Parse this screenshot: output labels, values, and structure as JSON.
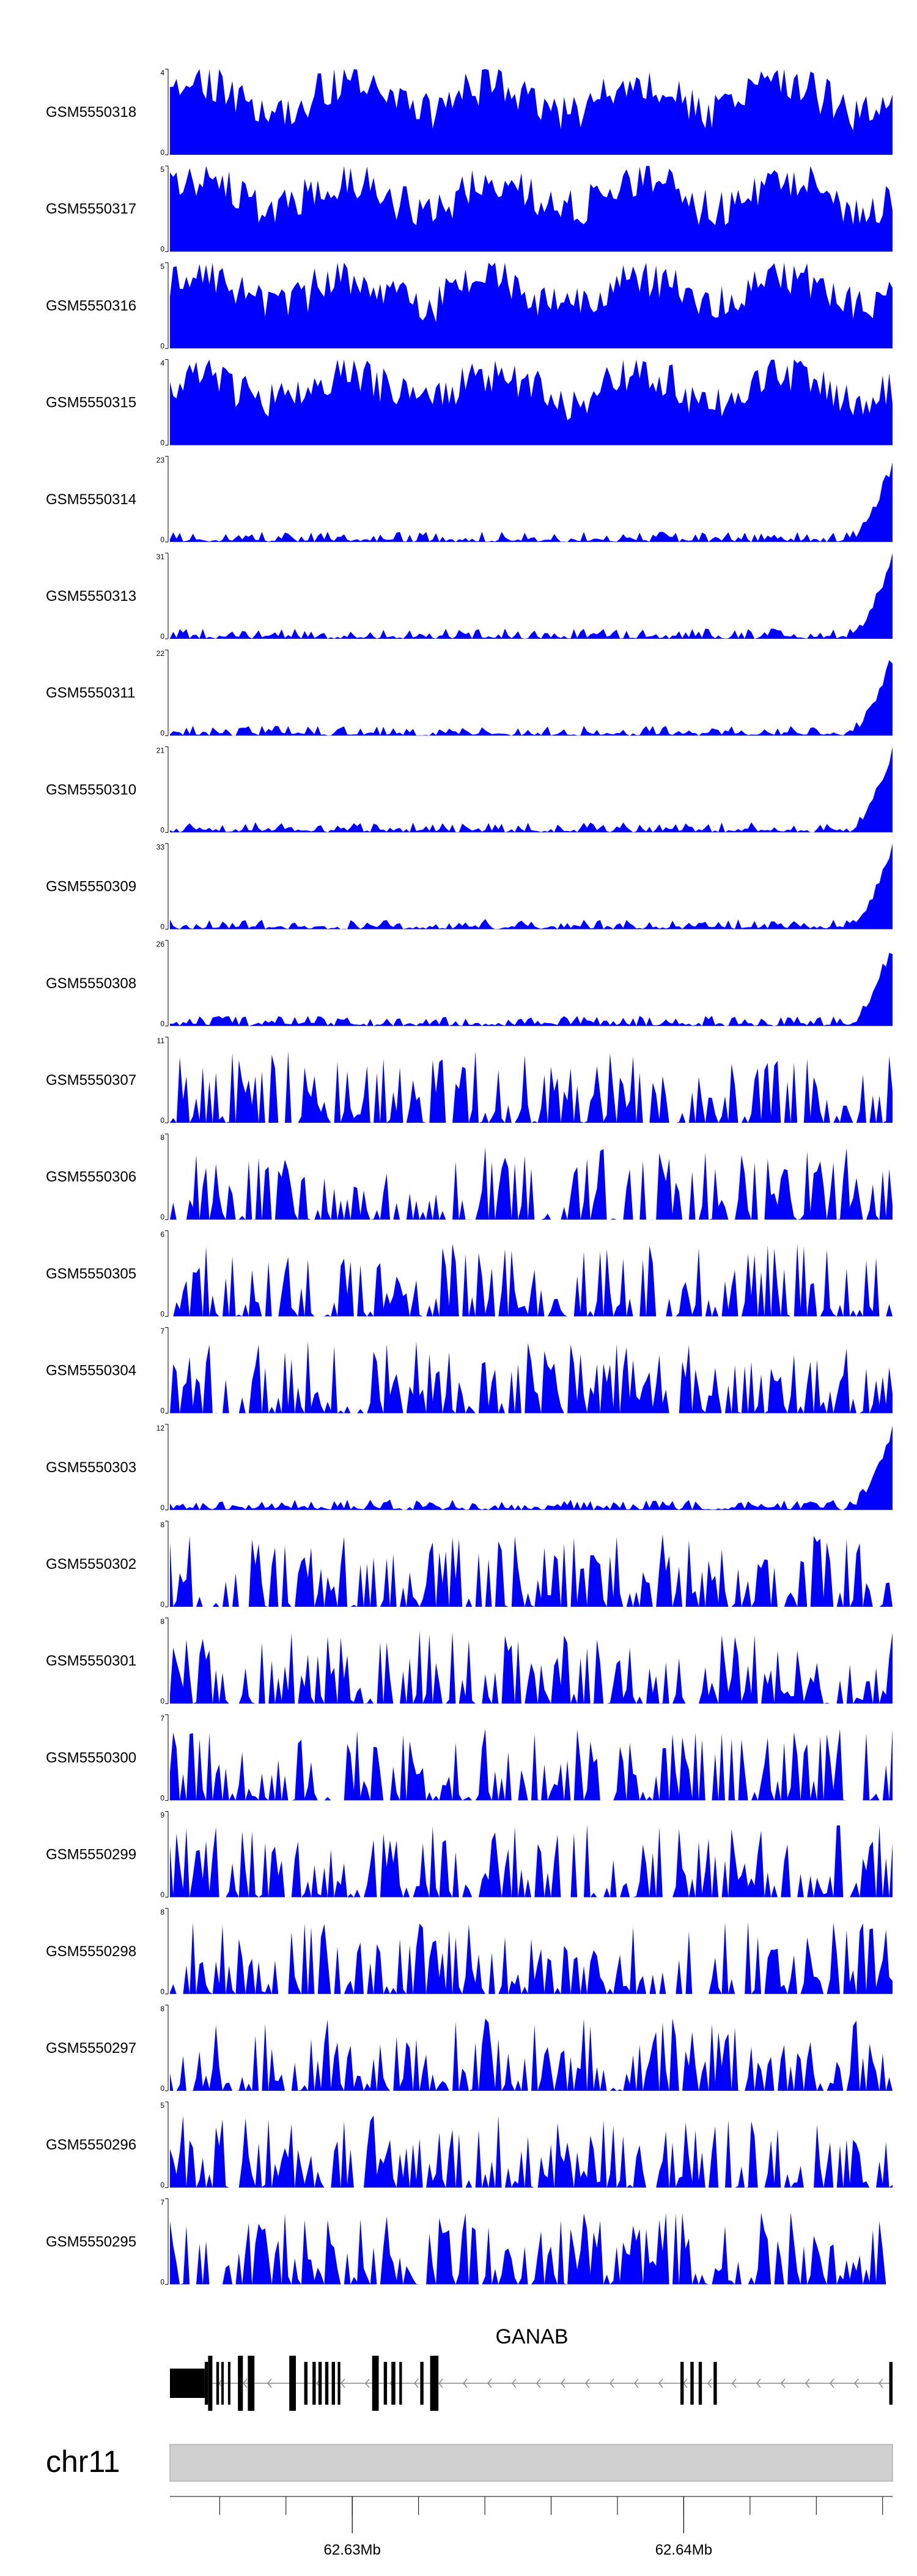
{
  "chart_data": {
    "type": "area",
    "x_range": [
      62624500,
      62646300
    ],
    "tracks": [
      {
        "name": "GSM5550318",
        "ylim": [
          0,
          4
        ],
        "profile": "uniform"
      },
      {
        "name": "GSM5550317",
        "ylim": [
          0,
          5
        ],
        "profile": "uniform"
      },
      {
        "name": "GSM5550316",
        "ylim": [
          0,
          5
        ],
        "profile": "uniform"
      },
      {
        "name": "GSM5550315",
        "ylim": [
          0,
          4
        ],
        "profile": "uniform"
      },
      {
        "name": "GSM5550314",
        "ylim": [
          0,
          23
        ],
        "profile": "rightpeak"
      },
      {
        "name": "GSM5550313",
        "ylim": [
          0,
          31
        ],
        "profile": "rightpeak"
      },
      {
        "name": "GSM5550311",
        "ylim": [
          0,
          22
        ],
        "profile": "rightpeak"
      },
      {
        "name": "GSM5550310",
        "ylim": [
          0,
          21
        ],
        "profile": "rightpeak"
      },
      {
        "name": "GSM5550309",
        "ylim": [
          0,
          33
        ],
        "profile": "rightpeak"
      },
      {
        "name": "GSM5550308",
        "ylim": [
          0,
          26
        ],
        "profile": "rightpeak"
      },
      {
        "name": "GSM5550307",
        "ylim": [
          0,
          11
        ],
        "profile": "sparse"
      },
      {
        "name": "GSM5550306",
        "ylim": [
          0,
          8
        ],
        "profile": "sparse"
      },
      {
        "name": "GSM5550305",
        "ylim": [
          0,
          6
        ],
        "profile": "sparse"
      },
      {
        "name": "GSM5550304",
        "ylim": [
          0,
          7
        ],
        "profile": "sparse"
      },
      {
        "name": "GSM5550303",
        "ylim": [
          0,
          12
        ],
        "profile": "rightpeak"
      },
      {
        "name": "GSM5550302",
        "ylim": [
          0,
          8
        ],
        "profile": "sparse"
      },
      {
        "name": "GSM5550301",
        "ylim": [
          0,
          8
        ],
        "profile": "sparse"
      },
      {
        "name": "GSM5550300",
        "ylim": [
          0,
          7
        ],
        "profile": "sparse"
      },
      {
        "name": "GSM5550299",
        "ylim": [
          0,
          9
        ],
        "profile": "sparse"
      },
      {
        "name": "GSM5550298",
        "ylim": [
          0,
          8
        ],
        "profile": "sparse"
      },
      {
        "name": "GSM5550297",
        "ylim": [
          0,
          8
        ],
        "profile": "sparse"
      },
      {
        "name": "GSM5550296",
        "ylim": [
          0,
          5
        ],
        "profile": "sparse"
      },
      {
        "name": "GSM5550295",
        "ylim": [
          0,
          7
        ],
        "profile": "sparse"
      }
    ],
    "gene": {
      "name": "GANAB",
      "strand": "-",
      "start": 62624500,
      "end": 62646300,
      "exons": [
        [
          62624500,
          62625550
        ],
        [
          62625550,
          62625650
        ],
        [
          62625650,
          62625780
        ],
        [
          62625900,
          62625980
        ],
        [
          62626050,
          62626120
        ],
        [
          62626250,
          62626320
        ],
        [
          62626550,
          62626700
        ],
        [
          62626850,
          62627050
        ],
        [
          62628100,
          62628300
        ],
        [
          62628550,
          62628650
        ],
        [
          62628800,
          62628900
        ],
        [
          62628980,
          62629080
        ],
        [
          62629180,
          62629280
        ],
        [
          62629380,
          62629480
        ],
        [
          62629560,
          62629640
        ],
        [
          62630600,
          62630800
        ],
        [
          62630950,
          62631050
        ],
        [
          62631180,
          62631300
        ],
        [
          62631420,
          62631500
        ],
        [
          62632050,
          62632150
        ],
        [
          62632350,
          62632600
        ],
        [
          62639900,
          62640000
        ],
        [
          62640200,
          62640300
        ],
        [
          62640450,
          62640550
        ],
        [
          62640900,
          62641000
        ],
        [
          62646200,
          62646300
        ]
      ]
    },
    "chromosome": "chr11",
    "xticks": [
      {
        "pos": 62630000,
        "label": "62.63Mb"
      },
      {
        "pos": 62640000,
        "label": "62.64Mb"
      }
    ],
    "colors": {
      "fill": "#0000ff",
      "axis": "#000000",
      "chrom_bar": "#d0d0d0"
    }
  }
}
